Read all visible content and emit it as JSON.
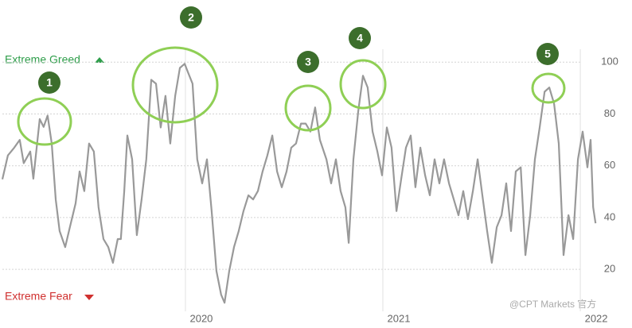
{
  "chart_data": {
    "type": "line",
    "greed_label": "Extreme Greed",
    "fear_label": "Extreme Fear",
    "annotations": [
      "1",
      "2",
      "3",
      "4",
      "5"
    ],
    "watermark": "@CPT Markets 官方",
    "x": [
      2019.073,
      2019.101,
      2019.133,
      2019.161,
      2019.181,
      2019.214,
      2019.23,
      2019.262,
      2019.282,
      2019.302,
      2019.323,
      2019.343,
      2019.363,
      2019.391,
      2019.415,
      2019.444,
      2019.464,
      2019.488,
      2019.512,
      2019.536,
      2019.56,
      2019.585,
      2019.609,
      2019.633,
      2019.657,
      2019.673,
      2019.69,
      2019.706,
      2019.73,
      2019.754,
      2019.778,
      2019.802,
      2019.827,
      2019.851,
      2019.875,
      2019.899,
      2019.923,
      2019.948,
      2019.972,
      2019.996,
      2020.012,
      2020.036,
      2020.06,
      2020.085,
      2020.109,
      2020.133,
      2020.157,
      2020.181,
      2020.198,
      2020.222,
      2020.246,
      2020.27,
      2020.294,
      2020.319,
      2020.343,
      2020.367,
      2020.391,
      2020.415,
      2020.44,
      2020.464,
      2020.488,
      2020.512,
      2020.536,
      2020.56,
      2020.585,
      2020.609,
      2020.633,
      2020.657,
      2020.681,
      2020.714,
      2020.738,
      2020.762,
      2020.786,
      2020.81,
      2020.827,
      2020.851,
      2020.875,
      2020.899,
      2020.923,
      2020.948,
      2020.972,
      2020.996,
      2021.02,
      2021.044,
      2021.069,
      2021.093,
      2021.117,
      2021.141,
      2021.165,
      2021.19,
      2021.214,
      2021.238,
      2021.262,
      2021.286,
      2021.31,
      2021.335,
      2021.359,
      2021.383,
      2021.407,
      2021.431,
      2021.456,
      2021.48,
      2021.504,
      2021.528,
      2021.552,
      2021.577,
      2021.601,
      2021.625,
      2021.649,
      2021.673,
      2021.698,
      2021.722,
      2021.746,
      2021.77,
      2021.794,
      2021.819,
      2021.843,
      2021.867,
      2021.891,
      2021.915,
      2021.94,
      2021.964,
      2021.988,
      2022.012,
      2022.036,
      2022.052,
      2022.065,
      2022.077
    ],
    "series": [
      {
        "color": "#999999",
        "values": [
          54.8,
          64,
          67,
          70,
          61,
          65.5,
          55,
          78,
          75,
          79.4,
          68.6,
          47,
          34.8,
          28.6,
          36.3,
          45.5,
          57.8,
          50.2,
          68.6,
          65.5,
          44,
          31.7,
          28.6,
          22.5,
          31.7,
          31.7,
          50.2,
          71.7,
          62.5,
          33.2,
          47,
          62.5,
          93.2,
          91.7,
          74.8,
          87,
          68.6,
          87,
          97.8,
          99.4,
          96.3,
          91.7,
          62.5,
          53.2,
          62.5,
          42.5,
          19.4,
          10.2,
          7.1,
          19.4,
          28.6,
          34.8,
          42.5,
          48.6,
          47,
          50.2,
          57.8,
          64,
          71.7,
          57.8,
          51.7,
          57.8,
          67,
          68.6,
          76.3,
          76.3,
          73.2,
          82.5,
          70,
          62.5,
          53.2,
          62.5,
          50.2,
          44,
          30.2,
          62.5,
          80.9,
          94.8,
          90.2,
          73.2,
          65.5,
          56.3,
          74.8,
          67,
          42.5,
          55,
          67,
          71.7,
          51.7,
          67,
          56.3,
          48.6,
          62.5,
          53.2,
          62.5,
          53.2,
          47,
          40.9,
          50.2,
          39.4,
          50.2,
          62.5,
          48.6,
          34.8,
          22.5,
          36.3,
          40.9,
          53.2,
          34.8,
          57.8,
          59.4,
          25.5,
          40.9,
          62.5,
          74.8,
          88.6,
          90.2,
          84,
          68.6,
          25.5,
          40.9,
          31.7,
          62.5,
          73.2,
          59.4,
          70,
          44,
          37.8
        ]
      }
    ],
    "xlim": [
      2019.073,
      2022.165
    ],
    "xticks": [
      2020,
      2021,
      2022
    ],
    "ylim": [
      5,
      105
    ],
    "yticks": [
      20,
      40,
      60,
      80,
      100
    ],
    "grid": true
  }
}
